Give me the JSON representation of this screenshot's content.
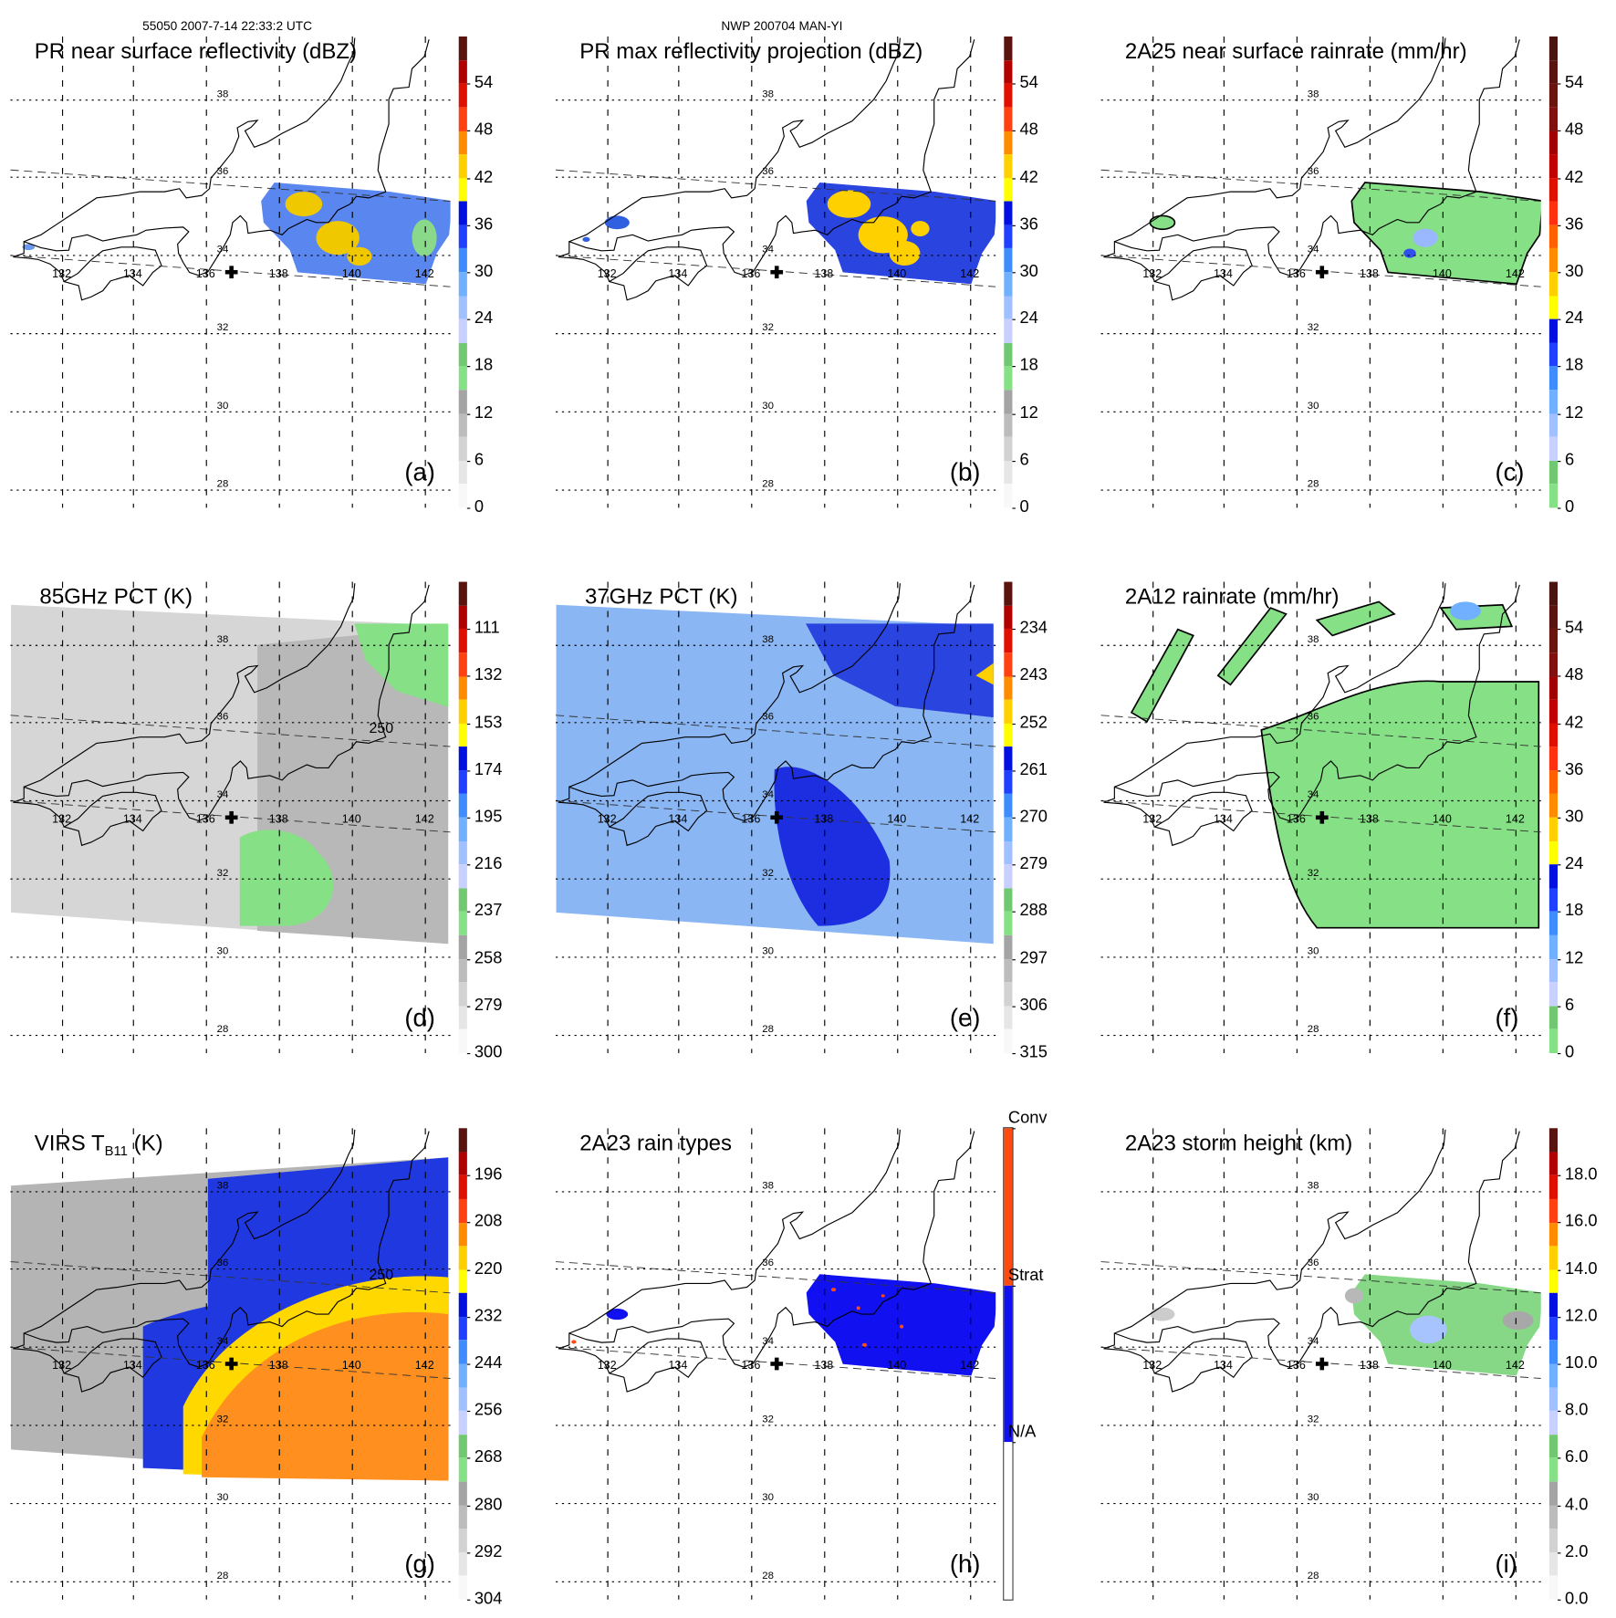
{
  "header": {
    "left": "55050 2007-7-14 22:33:2 UTC",
    "center": "NWP 200704 MAN-YI"
  },
  "map": {
    "lat_labels": [
      "38",
      "36",
      "34",
      "32",
      "30",
      "28"
    ],
    "lon_labels": [
      "132",
      "134",
      "136",
      "138",
      "140",
      "142"
    ]
  },
  "palettes": {
    "reflectivity": [
      "#f8f8f8",
      "#e6e6e6",
      "#d2d2d2",
      "#bcbcbc",
      "#a4a4a4",
      "#86e086",
      "#70c870",
      "#c8d0ff",
      "#a0c0ff",
      "#70b0ff",
      "#3f8cff",
      "#2040ff",
      "#0010e0",
      "#ffff00",
      "#ffd000",
      "#ff8c00",
      "#ff4010",
      "#e01000",
      "#b00000",
      "#5a1410"
    ],
    "rainrate": [
      "#86e086",
      "#70c870",
      "#c8d0ff",
      "#a0c0ff",
      "#70b0ff",
      "#3f8cff",
      "#2040ff",
      "#0010e0",
      "#ffff00",
      "#ffd000",
      "#ff8c00",
      "#ff6000",
      "#ff3010",
      "#e01000",
      "#c00000",
      "#a00000",
      "#801010",
      "#6a1410",
      "#5a1410",
      "#4a1410"
    ],
    "raintype": [
      "#ffffff",
      "#1010f0",
      "#ff4a10"
    ]
  },
  "panels": [
    {
      "id": "a",
      "title": "PR near surface reflectivity (dBZ)",
      "letter": "(a)",
      "palette": "reflectivity",
      "colorbar": {
        "min": 0,
        "max": 60,
        "ticks": [
          "0",
          "6",
          "12",
          "18",
          "24",
          "30",
          "36",
          "42",
          "48",
          "54"
        ],
        "values": [
          0,
          6,
          12,
          18,
          24,
          30,
          36,
          42,
          48,
          54
        ]
      }
    },
    {
      "id": "b",
      "title": "PR max reflectivity projection (dBZ)",
      "letter": "(b)",
      "palette": "reflectivity",
      "colorbar": {
        "min": 0,
        "max": 60,
        "ticks": [
          "0",
          "6",
          "12",
          "18",
          "24",
          "30",
          "36",
          "42",
          "48",
          "54"
        ],
        "values": [
          0,
          6,
          12,
          18,
          24,
          30,
          36,
          42,
          48,
          54
        ]
      }
    },
    {
      "id": "c",
      "title": "2A25 near surface rainrate (mm/hr)",
      "letter": "(c)",
      "palette": "rainrate",
      "colorbar": {
        "min": 0,
        "max": 60,
        "ticks": [
          "0",
          "6",
          "12",
          "18",
          "24",
          "30",
          "36",
          "42",
          "48",
          "54"
        ],
        "values": [
          0,
          6,
          12,
          18,
          24,
          30,
          36,
          42,
          48,
          54
        ]
      }
    },
    {
      "id": "d",
      "title": "85GHz PCT (K)",
      "letter": "(d)",
      "palette": "reflectivity",
      "annotation": "250",
      "colorbar": {
        "min": 300,
        "max": 90,
        "ticks": [
          "300",
          "279",
          "258",
          "237",
          "216",
          "195",
          "174",
          "153",
          "132",
          "111"
        ],
        "values": [
          300,
          279,
          258,
          237,
          216,
          195,
          174,
          153,
          132,
          111
        ]
      }
    },
    {
      "id": "e",
      "title": "37GHz PCT (K)",
      "letter": "(e)",
      "palette": "reflectivity",
      "colorbar": {
        "min": 315,
        "max": 225,
        "ticks": [
          "315",
          "306",
          "297",
          "288",
          "279",
          "270",
          "261",
          "252",
          "243",
          "234"
        ],
        "values": [
          315,
          306,
          297,
          288,
          279,
          270,
          261,
          252,
          243,
          234
        ]
      }
    },
    {
      "id": "f",
      "title": "2A12 rainrate (mm/hr)",
      "letter": "(f)",
      "palette": "rainrate",
      "colorbar": {
        "min": 0,
        "max": 60,
        "ticks": [
          "0",
          "6",
          "12",
          "18",
          "24",
          "30",
          "36",
          "42",
          "48",
          "54"
        ],
        "values": [
          0,
          6,
          12,
          18,
          24,
          30,
          36,
          42,
          48,
          54
        ]
      }
    },
    {
      "id": "g",
      "title": {
        "main": "VIRS T",
        "sub": "B11",
        "suffix": " (K)"
      },
      "letter": "(g)",
      "palette": "reflectivity",
      "annotation": "250",
      "colorbar": {
        "min": 304,
        "max": 184,
        "ticks": [
          "304",
          "292",
          "280",
          "268",
          "256",
          "244",
          "232",
          "220",
          "208",
          "196"
        ],
        "values": [
          304,
          292,
          280,
          268,
          256,
          244,
          232,
          220,
          208,
          196
        ]
      }
    },
    {
      "id": "h",
      "title": "2A23 rain types",
      "letter": "(h)",
      "palette": "raintype",
      "colorbar": {
        "min": 0,
        "max": 3,
        "ticks": [
          "N/A",
          "Strat",
          "Conv"
        ],
        "values": [
          1,
          2,
          3
        ]
      }
    },
    {
      "id": "i",
      "title": "2A23 storm height (km)",
      "letter": "(i)",
      "palette": "reflectivity",
      "colorbar": {
        "min": 0,
        "max": 20,
        "ticks": [
          "0.0",
          "2.0",
          "4.0",
          "6.0",
          "8.0",
          "10.0",
          "12.0",
          "14.0",
          "16.0",
          "18.0"
        ],
        "values": [
          0,
          2,
          4,
          6,
          8,
          10,
          12,
          14,
          16,
          18
        ]
      }
    }
  ]
}
